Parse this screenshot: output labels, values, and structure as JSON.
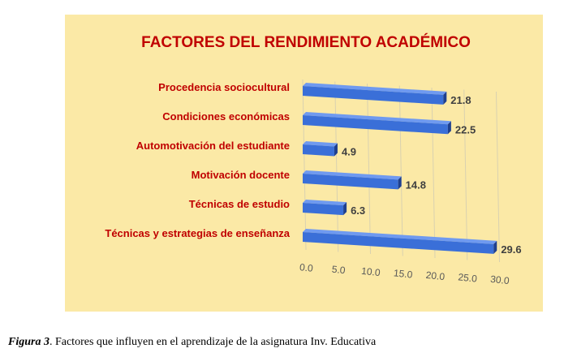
{
  "caption": {
    "figure_label": "Figura 3",
    "text": ". Factores que influyen en el aprendizaje de la asignatura Inv. Educativa"
  },
  "colors": {
    "bar": "#3a6fd8",
    "bar_dark": "#1e3f8f",
    "panel": "#fbe9a6",
    "title": "#c00000"
  },
  "chart_data": {
    "type": "bar",
    "orientation": "horizontal",
    "style": "3d",
    "title": "FACTORES DEL RENDIMIENTO ACADÉMICO",
    "xlabel": "",
    "ylabel": "",
    "categories": [
      "Procedencia sociocultural",
      "Condiciones económicas",
      "Automotivación del estudiante",
      "Motivación docente",
      "Técnicas de estudio",
      "Técnicas y estrategias de enseñanza"
    ],
    "values": [
      21.8,
      22.5,
      4.9,
      14.8,
      6.3,
      29.6
    ],
    "value_labels": [
      "21.8",
      "22.5",
      "4.9",
      "14.8",
      "6.3",
      "29.6"
    ],
    "xlim": [
      0,
      30
    ],
    "ticks": [
      "0.0",
      "5.0",
      "10.0",
      "15.0",
      "20.0",
      "25.0",
      "30.0"
    ],
    "grid": true,
    "legend": false
  }
}
